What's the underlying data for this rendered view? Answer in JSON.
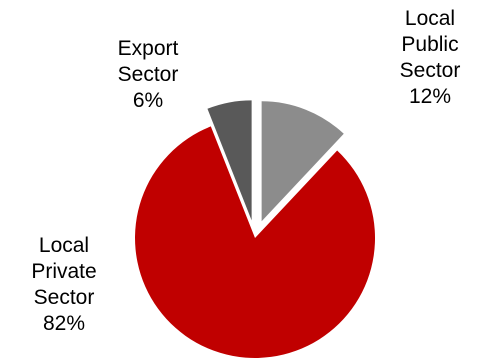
{
  "chart_data": {
    "type": "pie",
    "slices": [
      {
        "label_lines": [
          "Local",
          "Public",
          "Sector"
        ],
        "value": 12,
        "value_label": "12%",
        "color": "#8c8c8c",
        "exploded": true
      },
      {
        "label_lines": [
          "Local",
          "Private",
          "Sector"
        ],
        "value": 82,
        "value_label": "82%",
        "color": "#c00000",
        "exploded": false
      },
      {
        "label_lines": [
          "Export",
          "Sector"
        ],
        "value": 6,
        "value_label": "6%",
        "color": "#595959",
        "exploded": true
      }
    ],
    "start_angle_deg": 0,
    "direction": "clockwise"
  }
}
